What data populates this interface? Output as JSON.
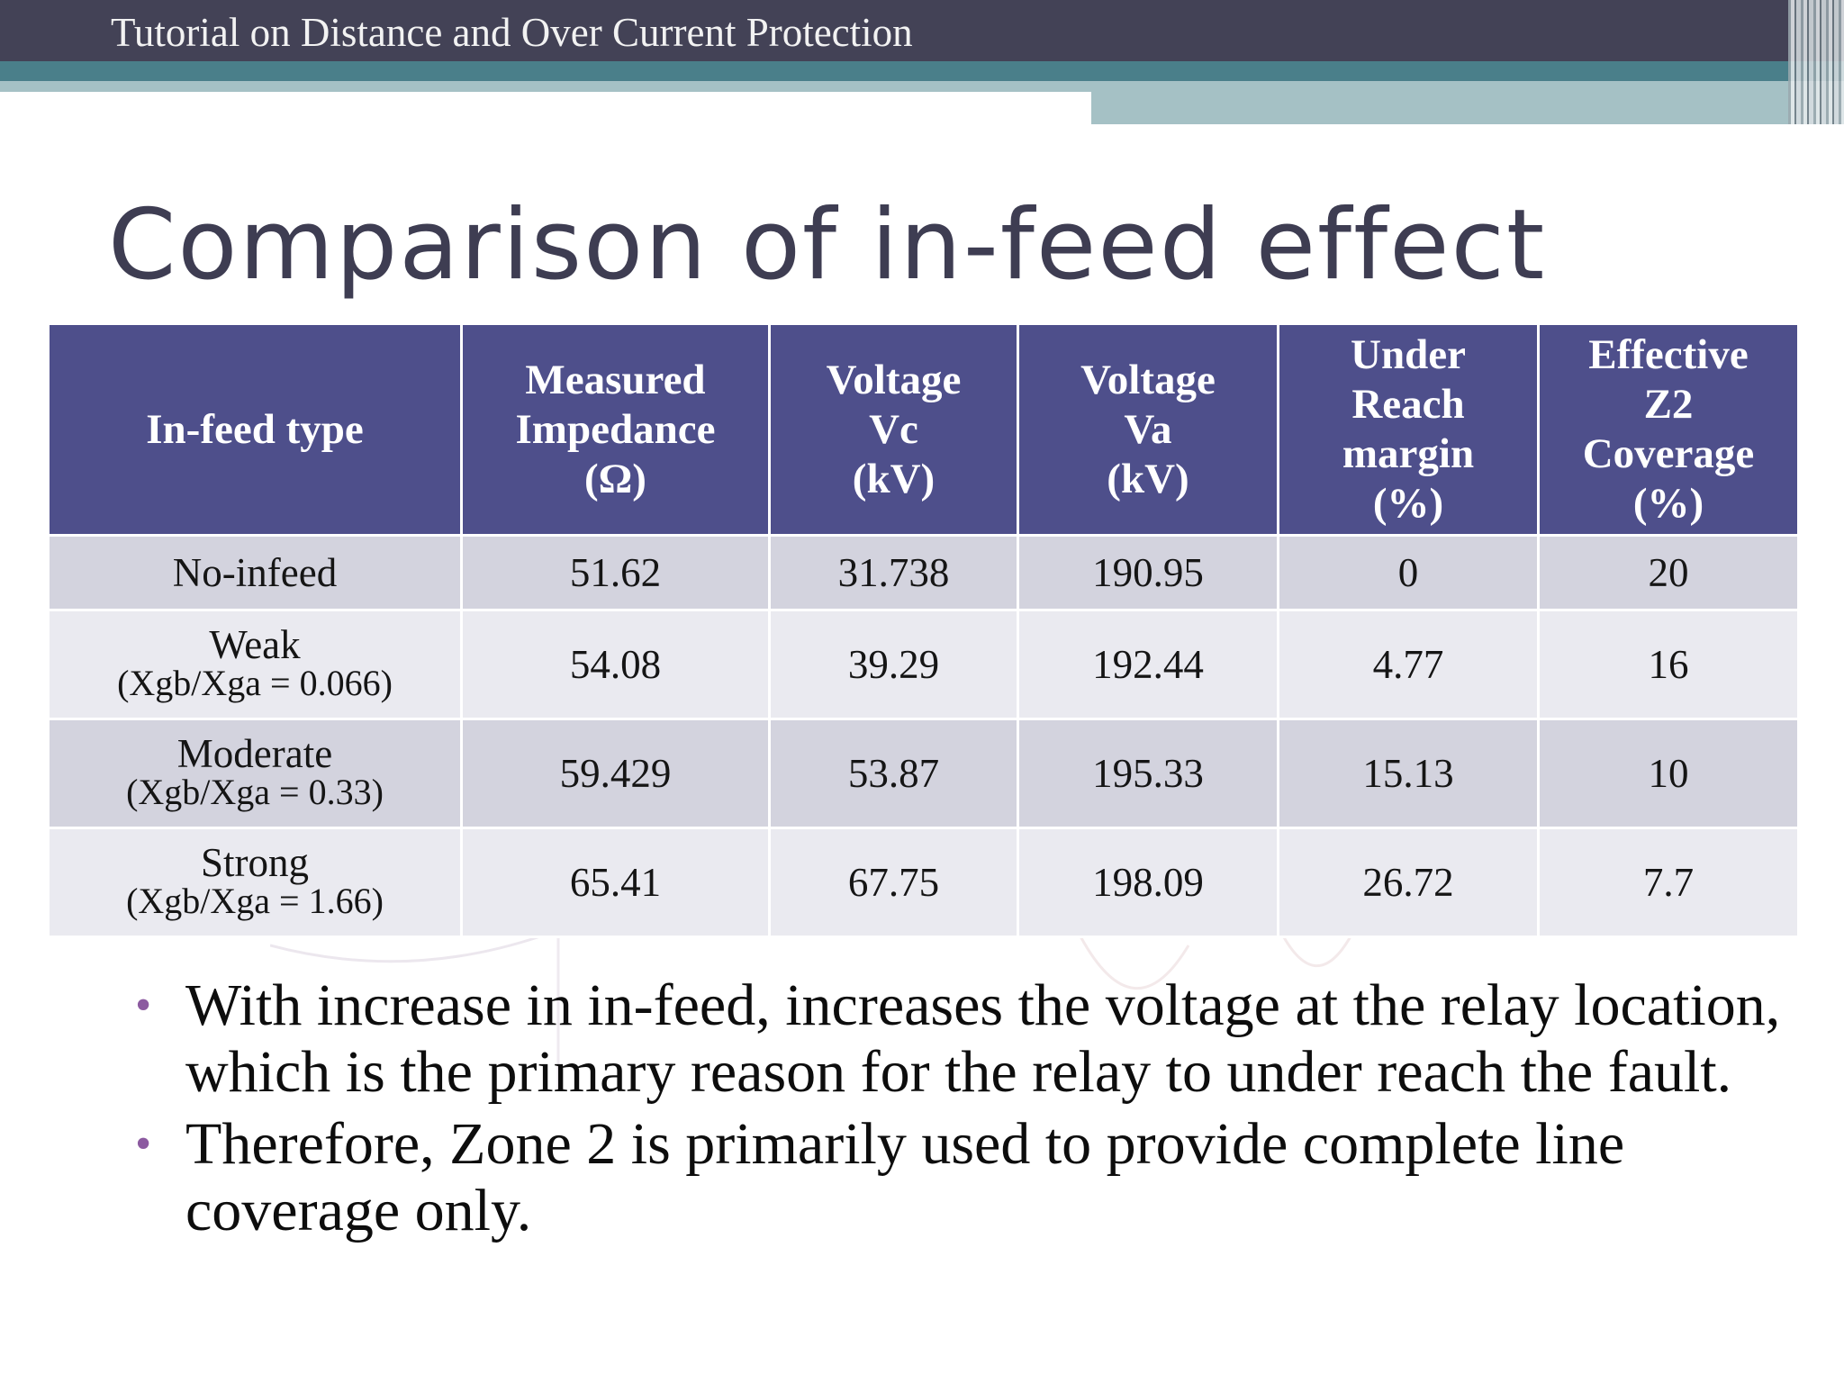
{
  "header": {
    "deck_title": "Tutorial on Distance and Over Current Protection"
  },
  "slide": {
    "title": "Comparison of in-feed effect"
  },
  "table": {
    "headers": [
      [
        "In-feed type"
      ],
      [
        "Measured",
        "Impedance",
        "(Ω)"
      ],
      [
        "Voltage",
        "Vc",
        "(kV)"
      ],
      [
        "Voltage",
        "Va",
        "(kV)"
      ],
      [
        "Under",
        "Reach",
        "margin",
        "(%)"
      ],
      [
        "Effective",
        "Z2",
        "Coverage",
        "(%)"
      ]
    ],
    "rows": [
      {
        "type": "No-infeed",
        "sub": "",
        "impedance": "51.62",
        "vc": "31.738",
        "va": "190.95",
        "margin": "0",
        "coverage": "20"
      },
      {
        "type": "Weak",
        "sub": "(Xgb/Xga = 0.066)",
        "impedance": "54.08",
        "vc": "39.29",
        "va": "192.44",
        "margin": "4.77",
        "coverage": "16"
      },
      {
        "type": "Moderate",
        "sub": "(Xgb/Xga = 0.33)",
        "impedance": "59.429",
        "vc": "53.87",
        "va": "195.33",
        "margin": "15.13",
        "coverage": "10"
      },
      {
        "type": "Strong",
        "sub": "(Xgb/Xga = 1.66)",
        "impedance": "65.41",
        "vc": "67.75",
        "va": "198.09",
        "margin": "26.72",
        "coverage": "7.7"
      }
    ]
  },
  "bullets": [
    {
      "marker": "•",
      "text": "With increase in in-feed, increases the voltage at the relay location, which is the primary reason for the relay to under reach the fault."
    },
    {
      "marker": "•",
      "text": "Therefore, Zone 2 is primarily used to provide complete line coverage only."
    }
  ],
  "colors": {
    "header_dark": "#434256",
    "header_teal": "#4a7f8a",
    "table_header": "#4e4f8b",
    "row_shaded": "#d3d3de",
    "row_light": "#eaeaf0",
    "bullet": "#8c5aa0"
  }
}
